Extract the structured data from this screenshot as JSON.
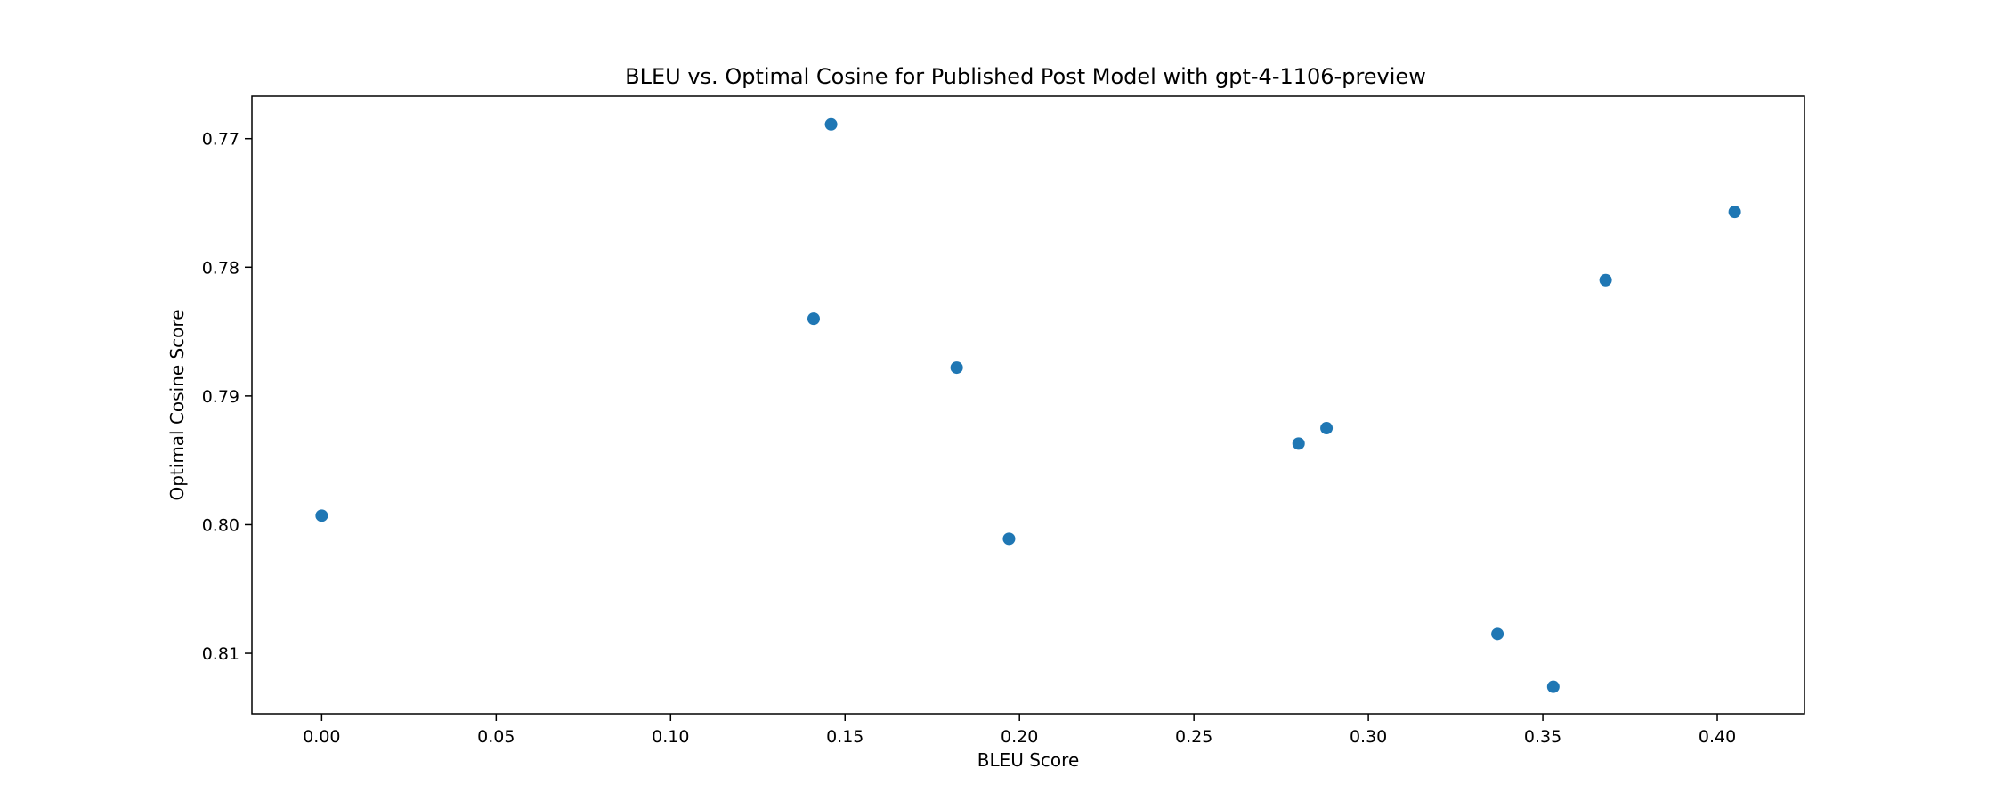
{
  "chart_data": {
    "type": "scatter",
    "title": "BLEU vs. Optimal Cosine for Published Post Model with gpt-4-1106-preview",
    "xlabel": "BLEU Score",
    "ylabel": "Optimal Cosine Score",
    "xlim": [
      -0.02,
      0.425
    ],
    "ylim": [
      0.8147,
      0.7667
    ],
    "y_inverted": true,
    "grid": false,
    "color": "#1f77b4",
    "x_ticks": [
      {
        "value": 0.0,
        "label": "0.00"
      },
      {
        "value": 0.05,
        "label": "0.05"
      },
      {
        "value": 0.1,
        "label": "0.10"
      },
      {
        "value": 0.15,
        "label": "0.15"
      },
      {
        "value": 0.2,
        "label": "0.20"
      },
      {
        "value": 0.25,
        "label": "0.25"
      },
      {
        "value": 0.3,
        "label": "0.30"
      },
      {
        "value": 0.35,
        "label": "0.35"
      },
      {
        "value": 0.4,
        "label": "0.40"
      }
    ],
    "y_ticks": [
      {
        "value": 0.77,
        "label": "0.77"
      },
      {
        "value": 0.78,
        "label": "0.78"
      },
      {
        "value": 0.79,
        "label": "0.79"
      },
      {
        "value": 0.8,
        "label": "0.80"
      },
      {
        "value": 0.81,
        "label": "0.81"
      }
    ],
    "points": [
      {
        "x": 0.0,
        "y": 0.7993
      },
      {
        "x": 0.141,
        "y": 0.784
      },
      {
        "x": 0.146,
        "y": 0.7689
      },
      {
        "x": 0.182,
        "y": 0.7878
      },
      {
        "x": 0.197,
        "y": 0.8011
      },
      {
        "x": 0.28,
        "y": 0.7937
      },
      {
        "x": 0.288,
        "y": 0.7925
      },
      {
        "x": 0.337,
        "y": 0.8085
      },
      {
        "x": 0.353,
        "y": 0.8126
      },
      {
        "x": 0.368,
        "y": 0.781
      },
      {
        "x": 0.405,
        "y": 0.7757
      }
    ]
  }
}
